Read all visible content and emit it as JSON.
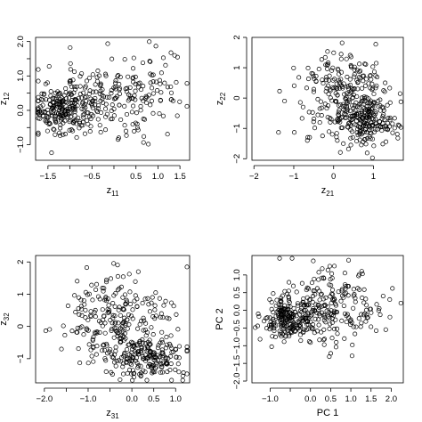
{
  "chart_data": [
    {
      "type": "scatter",
      "xlabel": {
        "base": "z",
        "sub": "11"
      },
      "ylabel": {
        "base": "z",
        "sub": "12"
      },
      "xticks": [
        -1.5,
        -1.0,
        -0.5,
        0.0,
        0.5,
        1.0,
        1.5
      ],
      "xtick_labels": [
        "−1.5",
        "",
        "−0.5",
        "",
        "0.5",
        "1.0",
        "1.5"
      ],
      "yticks": [
        -1.0,
        -0.5,
        0.0,
        0.5,
        1.0,
        1.5,
        2.0
      ],
      "ytick_labels": [
        "−1.0",
        "",
        "0.0",
        "",
        "1.0",
        "",
        "2.0"
      ],
      "xlim": [
        -1.78,
        1.72
      ],
      "ylim": [
        -1.45,
        2.12
      ],
      "n_points": 420,
      "clusters": [
        {
          "x": -1.2,
          "y": 0.05,
          "sx": 0.3,
          "sy": 0.38,
          "w": 0.45
        },
        {
          "x": -0.3,
          "y": 0.3,
          "sx": 0.55,
          "sy": 0.55,
          "w": 0.3
        },
        {
          "x": 0.7,
          "y": 0.55,
          "sx": 0.55,
          "sy": 0.6,
          "w": 0.25
        }
      ]
    },
    {
      "type": "scatter",
      "xlabel": {
        "base": "z",
        "sub": "21"
      },
      "ylabel": {
        "base": "z",
        "sub": "22"
      },
      "xticks": [
        -2,
        -1,
        0,
        1
      ],
      "xtick_labels": [
        "−2",
        "−1",
        "0",
        "1"
      ],
      "yticks": [
        -2,
        -1,
        0,
        1,
        2
      ],
      "ytick_labels": [
        "−2",
        "−1",
        "0",
        "1",
        "2"
      ],
      "xlim": [
        -2.05,
        1.75
      ],
      "ylim": [
        -2.05,
        2.0
      ],
      "n_points": 420,
      "clusters": [
        {
          "x": 0.8,
          "y": -0.75,
          "sx": 0.4,
          "sy": 0.42,
          "w": 0.5
        },
        {
          "x": 0.3,
          "y": 0.45,
          "sx": 0.5,
          "sy": 0.55,
          "w": 0.35
        },
        {
          "x": 0.2,
          "y": -0.2,
          "sx": 0.7,
          "sy": 0.7,
          "w": 0.15
        }
      ]
    },
    {
      "type": "scatter",
      "xlabel": {
        "base": "z",
        "sub": "31"
      },
      "ylabel": {
        "base": "z",
        "sub": "32"
      },
      "xticks": [
        -2.0,
        -1.5,
        -1.0,
        -0.5,
        0.0,
        0.5,
        1.0
      ],
      "xtick_labels": [
        "−2.0",
        "",
        "−1.0",
        "",
        "0.0",
        "0.5",
        "1.0"
      ],
      "yticks": [
        -1,
        0,
        1,
        2
      ],
      "ytick_labels": [
        "−1",
        "0",
        "1",
        "2"
      ],
      "xlim": [
        -2.2,
        1.32
      ],
      "ylim": [
        -1.75,
        2.2
      ],
      "n_points": 420,
      "clusters": [
        {
          "x": 0.3,
          "y": -0.9,
          "sx": 0.45,
          "sy": 0.35,
          "w": 0.5
        },
        {
          "x": -0.6,
          "y": 0.0,
          "sx": 0.5,
          "sy": 0.6,
          "w": 0.3
        },
        {
          "x": -0.2,
          "y": 0.7,
          "sx": 0.55,
          "sy": 0.55,
          "w": 0.2
        }
      ]
    },
    {
      "type": "scatter",
      "xlabel": "PC 1",
      "ylabel": "PC 2",
      "xticks": [
        -1.0,
        -0.5,
        0.0,
        0.5,
        1.0,
        1.5,
        2.0
      ],
      "xtick_labels": [
        "−1.0",
        "",
        "0.0",
        "0.5",
        "1.0",
        "1.5",
        "2.0"
      ],
      "yticks": [
        -2.0,
        -1.5,
        -1.0,
        -0.5,
        0.0,
        0.5,
        1.0
      ],
      "ytick_labels": [
        "−2.0",
        "−1.5",
        "−1.0",
        "−0.5",
        "0.0",
        "0.5",
        "1.0"
      ],
      "xlim": [
        -1.45,
        2.3
      ],
      "ylim": [
        -2.05,
        1.55
      ],
      "n_points": 420,
      "clusters": [
        {
          "x": -0.55,
          "y": -0.25,
          "sx": 0.3,
          "sy": 0.3,
          "w": 0.5
        },
        {
          "x": 0.2,
          "y": 0.1,
          "sx": 0.5,
          "sy": 0.55,
          "w": 0.3
        },
        {
          "x": 1.0,
          "y": -0.1,
          "sx": 0.55,
          "sy": 0.6,
          "w": 0.2
        }
      ]
    }
  ]
}
